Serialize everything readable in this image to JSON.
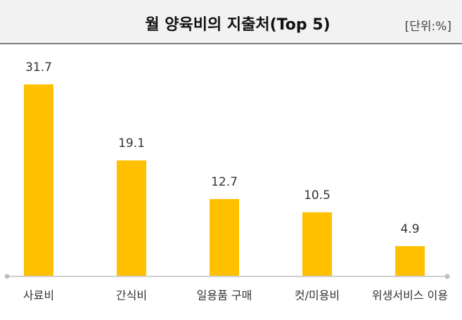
{
  "chart_data": {
    "type": "bar",
    "title": "월 양육비의 지출처(Top 5)",
    "unit": "[단위:%]",
    "categories": [
      "사료비",
      "간식비",
      "일용품 구매",
      "컷/미용비",
      "위생서비스 이용"
    ],
    "values": [
      31.7,
      19.1,
      12.7,
      10.5,
      4.9
    ],
    "color": "#ffc000"
  }
}
